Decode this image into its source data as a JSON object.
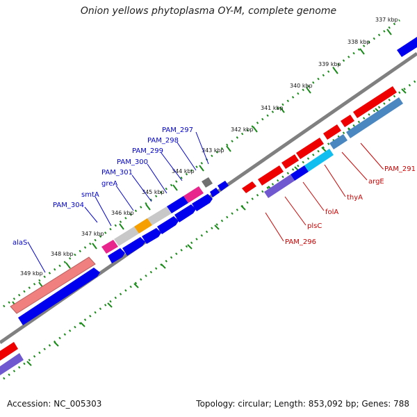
{
  "title": "Onion yellows phytoplasma OY-M, complete genome",
  "footer": {
    "accession": "Accession: NC_005303",
    "summary": "Topology: circular; Length: 853,092 bp; Genes: 788"
  },
  "colors": {
    "backbone": "#808080",
    "tick": "#1a8a1a",
    "forward_label": "#0000cc",
    "reverse_label": "#cc0000",
    "blue_gene": "#0000ee",
    "red_gene": "#ee0000",
    "pink_gene": "#f08080",
    "magenta_gene": "#e8258c",
    "gray_gene": "#c8c8c8",
    "dark_gray_gene": "#707070",
    "orange_gene": "#f5a000",
    "purple_gene": "#7058d0",
    "cyan_gene": "#10bff0",
    "steel_gene": "#4a86c0"
  },
  "scale_labels": [
    "337 kbp",
    "338 kbp",
    "339 kbp",
    "340 kbp",
    "341 kbp",
    "342 kbp",
    "343 kbp",
    "344 kbp",
    "345 kbp",
    "346 kbp",
    "347 kbp",
    "348 kbp",
    "349 kbp"
  ],
  "forward_labels": [
    "alaS",
    "PAM_304",
    "smtA",
    "greA",
    "PAM_301",
    "PAM_300",
    "PAM_299",
    "PAM_298",
    "PAM_297"
  ],
  "reverse_labels": [
    "PAM_291",
    "argE",
    "thyA",
    "folA",
    "plsC",
    "PAM_296"
  ]
}
